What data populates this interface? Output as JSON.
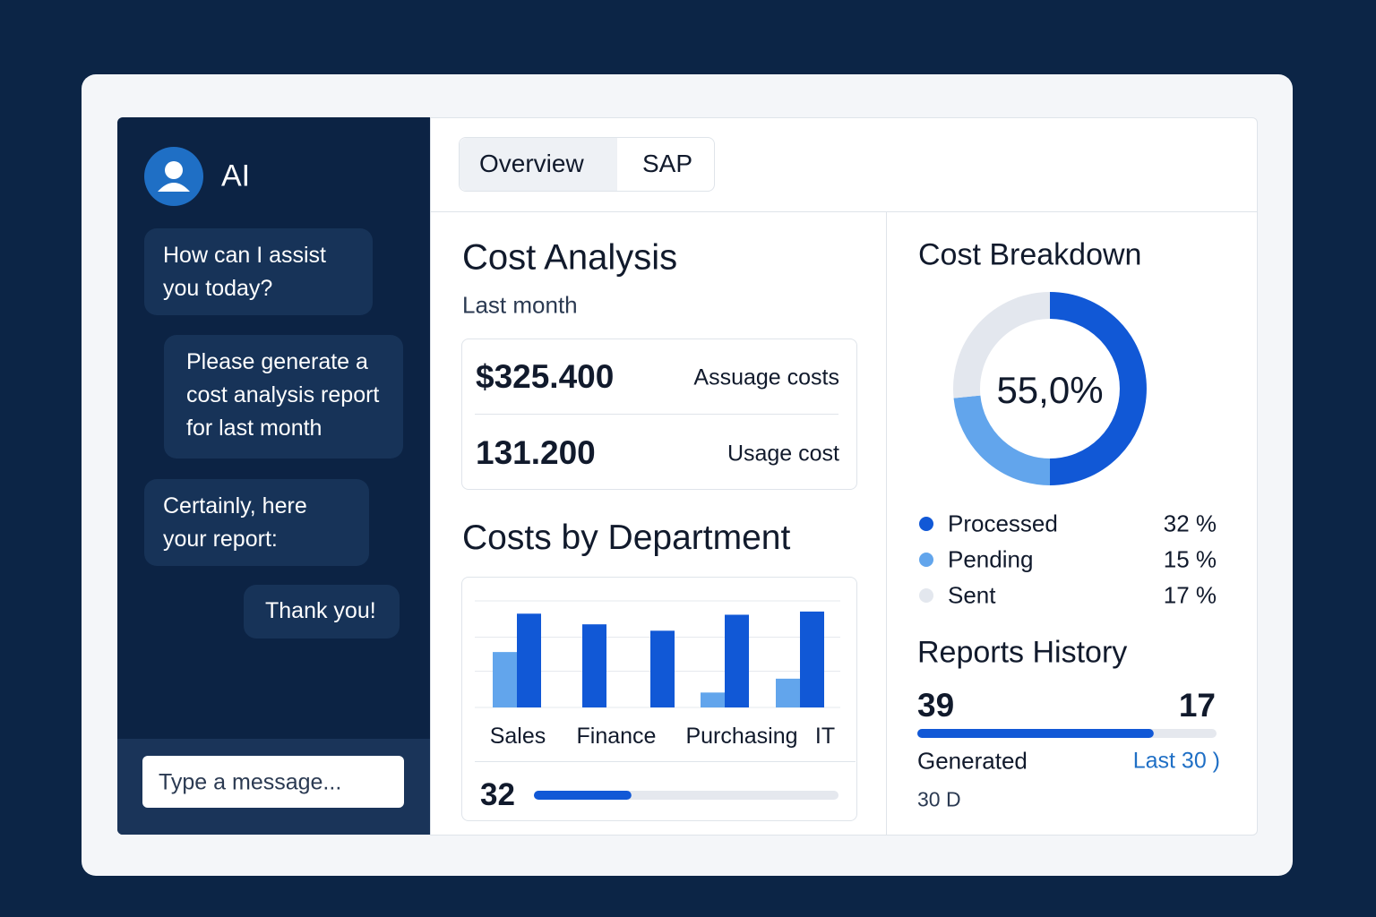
{
  "sidebar": {
    "assistant_name": "AI",
    "messages": [
      "How can I assist you today?",
      "Please generate a cost analysis report for last month",
      "Certainly, here your report:",
      "Thank you!"
    ],
    "input_placeholder": "Type a message..."
  },
  "tabs": [
    "Overview",
    "SAP"
  ],
  "cost_analysis": {
    "title": "Cost Analysis",
    "subtitle": "Last month",
    "metrics": [
      {
        "value": "$325.400",
        "label": "Assuage costs"
      },
      {
        "value": "131.200",
        "label": "Usage cost"
      }
    ]
  },
  "department": {
    "title": "Costs by Department",
    "chart_data": {
      "type": "bar",
      "categories": [
        "Sales",
        "Finance",
        null,
        "Purchasing",
        "IT"
      ],
      "series": [
        {
          "color": "#62a5ec",
          "values": [
            52,
            null,
            null,
            14,
            27
          ]
        },
        {
          "color": "#1158d6",
          "values": [
            88,
            78,
            72,
            87,
            90
          ]
        }
      ],
      "ylim": [
        0,
        100
      ],
      "yticks": [
        0,
        34,
        66,
        100
      ],
      "grid": true
    },
    "footer_value": 32
  },
  "breakdown": {
    "title": "Cost Breakdown",
    "chart_data": {
      "type": "pie",
      "center_label": "55,0%",
      "categories": [
        "Processed",
        "Pending",
        "Sent"
      ],
      "values": [
        32,
        15,
        17
      ],
      "value_labels": [
        "32 %",
        "15 %",
        "17 %"
      ],
      "colors": [
        "#1158d6",
        "#62a5ec",
        "#e3e7ee"
      ]
    }
  },
  "reports": {
    "title": "Reports History",
    "left_value": 39,
    "right_value": 17,
    "progress": 79,
    "left_label": "Generated",
    "right_label": "Last 30 )",
    "note": "30 D"
  }
}
